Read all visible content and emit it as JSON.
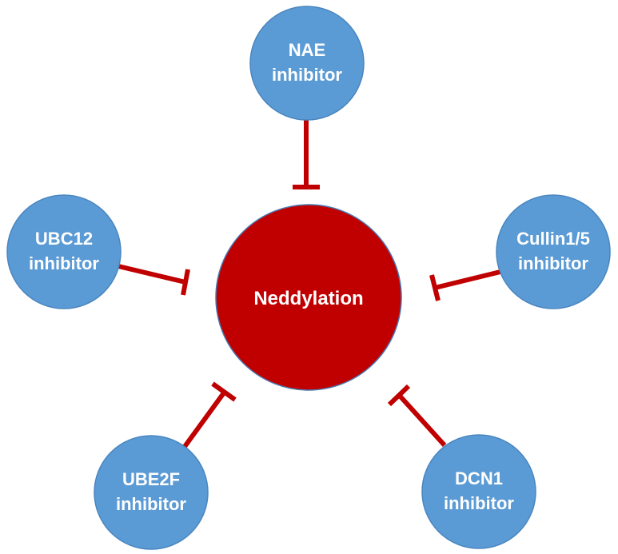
{
  "diagram": {
    "center": {
      "label": "Neddylation",
      "fill": "#c00000",
      "stroke": "#4a78b0"
    },
    "inhibitor_fill": "#5b9bd5",
    "inhibitor_stroke": "#4a86bf",
    "arrow_color": "#c00000",
    "inhibitors": [
      {
        "id": "nae",
        "line1": "NAE",
        "line2": "inhibitor"
      },
      {
        "id": "ubc12",
        "line1": "UBC12",
        "line2": "inhibitor"
      },
      {
        "id": "cullin",
        "line1": "Cullin1/5",
        "line2": "inhibitor"
      },
      {
        "id": "ube2f",
        "line1": "UBE2F",
        "line2": "inhibitor"
      },
      {
        "id": "dcn1",
        "line1": "DCN1",
        "line2": "inhibitor"
      }
    ]
  }
}
